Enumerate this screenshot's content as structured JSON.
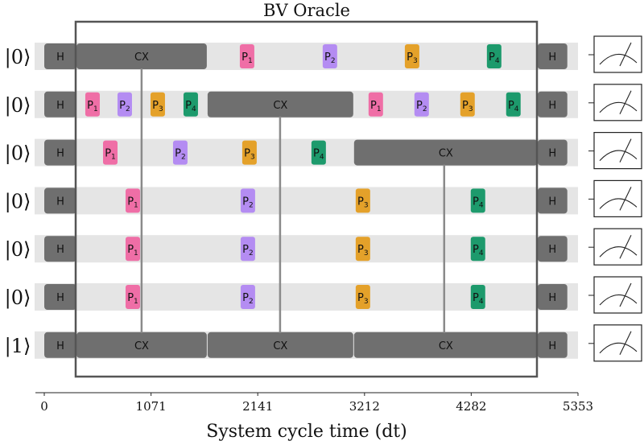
{
  "title": "BV Oracle",
  "xlabel": "System cycle time (dt)",
  "ticks": [
    0,
    1071,
    2141,
    3212,
    4282,
    5353
  ],
  "xlim": [
    0,
    5353
  ],
  "colors": {
    "band": "#e5e5e5",
    "gate": "#6f6f6f",
    "P1": "#ef6ea6",
    "P2": "#b48cf2",
    "P3": "#e4a12a",
    "P4": "#1d9a6c",
    "box": "#555555"
  },
  "qubits": [
    {
      "label": "|0⟩",
      "gates": [
        {
          "n": "H",
          "s": 0,
          "e": 323
        },
        {
          "n": "CX",
          "s": 323,
          "e": 1630
        },
        {
          "n": "P1",
          "c": 2034
        },
        {
          "n": "P2",
          "c": 2865
        },
        {
          "n": "P3",
          "c": 3689
        },
        {
          "n": "P4",
          "c": 4512
        },
        {
          "n": "H",
          "s": 4948,
          "e": 5246
        }
      ]
    },
    {
      "label": "|0⟩",
      "gates": [
        {
          "n": "H",
          "s": 0,
          "e": 323
        },
        {
          "n": "P1",
          "c": 484
        },
        {
          "n": "P2",
          "c": 807
        },
        {
          "n": "P3",
          "c": 1138
        },
        {
          "n": "P4",
          "c": 1469
        },
        {
          "n": "CX",
          "s": 1638,
          "e": 3099
        },
        {
          "n": "P1",
          "c": 3325
        },
        {
          "n": "P2",
          "c": 3785
        },
        {
          "n": "P3",
          "c": 4245
        },
        {
          "n": "P4",
          "c": 4705
        },
        {
          "n": "H",
          "s": 4948,
          "e": 5246
        }
      ]
    },
    {
      "label": "|0⟩",
      "gates": [
        {
          "n": "H",
          "s": 0,
          "e": 323
        },
        {
          "n": "P1",
          "c": 662
        },
        {
          "n": "P2",
          "c": 1364
        },
        {
          "n": "P3",
          "c": 2058
        },
        {
          "n": "P4",
          "c": 2752
        },
        {
          "n": "CX",
          "s": 3107,
          "e": 4948
        },
        {
          "n": "H",
          "s": 4948,
          "e": 5246
        }
      ]
    },
    {
      "label": "|0⟩",
      "gates": [
        {
          "n": "H",
          "s": 0,
          "e": 323
        },
        {
          "n": "P1",
          "c": 888
        },
        {
          "n": "P2",
          "c": 2042
        },
        {
          "n": "P3",
          "c": 3196
        },
        {
          "n": "P4",
          "c": 4350
        },
        {
          "n": "H",
          "s": 4948,
          "e": 5246
        }
      ]
    },
    {
      "label": "|0⟩",
      "gates": [
        {
          "n": "H",
          "s": 0,
          "e": 323
        },
        {
          "n": "P1",
          "c": 888
        },
        {
          "n": "P2",
          "c": 2042
        },
        {
          "n": "P3",
          "c": 3196
        },
        {
          "n": "P4",
          "c": 4350
        },
        {
          "n": "H",
          "s": 4948,
          "e": 5246
        }
      ]
    },
    {
      "label": "|0⟩",
      "gates": [
        {
          "n": "H",
          "s": 0,
          "e": 323
        },
        {
          "n": "P1",
          "c": 888
        },
        {
          "n": "P2",
          "c": 2042
        },
        {
          "n": "P3",
          "c": 3196
        },
        {
          "n": "P4",
          "c": 4350
        },
        {
          "n": "H",
          "s": 4948,
          "e": 5246
        }
      ]
    },
    {
      "label": "|1⟩",
      "gates": [
        {
          "n": "H",
          "s": 0,
          "e": 323
        },
        {
          "n": "CX",
          "s": 323,
          "e": 1630
        },
        {
          "n": "CX",
          "s": 1638,
          "e": 3099
        },
        {
          "n": "CX",
          "s": 3107,
          "e": 4948
        },
        {
          "n": "H",
          "s": 4948,
          "e": 5246
        }
      ]
    }
  ],
  "links": [
    {
      "t": 976,
      "from": 0,
      "to": 6
    },
    {
      "t": 2365,
      "from": 1,
      "to": 6
    },
    {
      "t": 4011,
      "from": 2,
      "to": 6
    }
  ]
}
